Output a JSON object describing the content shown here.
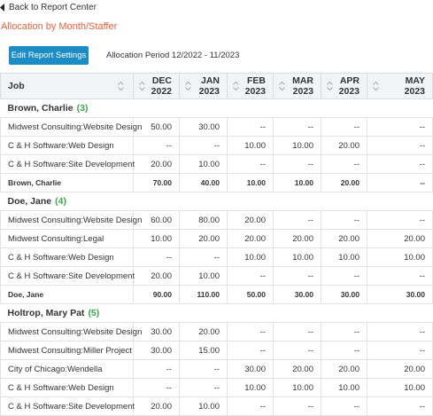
{
  "header": {
    "back_link": "Back to Report Center",
    "title": "Allocation by Month/Staffer"
  },
  "toolbar": {
    "button": "Edit Report Settings",
    "period": "Allocation Period 12/2022 - 11/2023"
  },
  "table": {
    "job_header": "Job",
    "columns": [
      {
        "month": "DEC",
        "year": "2022"
      },
      {
        "month": "JAN",
        "year": "2023"
      },
      {
        "month": "FEB",
        "year": "2023"
      },
      {
        "month": "MAR",
        "year": "2023"
      },
      {
        "month": "APR",
        "year": "2023"
      },
      {
        "month": "MAY",
        "year": "2023"
      }
    ],
    "groups": [
      {
        "name": "Brown, Charlie",
        "count": "(3)",
        "rows": [
          {
            "job": "Midwest Consulting:Website Design",
            "values": [
              "50.00",
              "30.00",
              "--",
              "--",
              "--",
              "--"
            ]
          },
          {
            "job": "C & H Software:Web Design",
            "values": [
              "--",
              "--",
              "10.00",
              "10.00",
              "20.00",
              "--"
            ]
          },
          {
            "job": "C & H Software:Site Development",
            "values": [
              "20.00",
              "10.00",
              "--",
              "--",
              "--",
              "--"
            ]
          }
        ],
        "total": {
          "label": "Brown, Charlie",
          "values": [
            "70.00",
            "40.00",
            "10.00",
            "10.00",
            "20.00",
            "--"
          ]
        }
      },
      {
        "name": "Doe, Jane",
        "count": "(4)",
        "rows": [
          {
            "job": "Midwest Consulting:Website Design",
            "values": [
              "60.00",
              "80.00",
              "20.00",
              "--",
              "--",
              "--"
            ]
          },
          {
            "job": "Midwest Consulting:Legal",
            "values": [
              "10.00",
              "20.00",
              "20.00",
              "20.00",
              "20.00",
              "20.00"
            ]
          },
          {
            "job": "C & H Software:Web Design",
            "values": [
              "--",
              "--",
              "10.00",
              "10.00",
              "10.00",
              "10.00"
            ]
          },
          {
            "job": "C & H Software:Site Development",
            "values": [
              "20.00",
              "10.00",
              "--",
              "--",
              "--",
              "--"
            ]
          }
        ],
        "total": {
          "label": "Doe, Jane",
          "values": [
            "90.00",
            "110.00",
            "50.00",
            "30.00",
            "30.00",
            "30.00"
          ]
        }
      },
      {
        "name": "Holtrop, Mary Pat",
        "count": "(5)",
        "rows": [
          {
            "job": "Midwest Consulting:Website Design",
            "values": [
              "30.00",
              "20.00",
              "--",
              "--",
              "--",
              "--"
            ]
          },
          {
            "job": "Midwest Consulting:Miller Project",
            "values": [
              "30.00",
              "15.00",
              "--",
              "--",
              "--",
              "--"
            ]
          },
          {
            "job": "City of Chicago:Wendella",
            "values": [
              "--",
              "--",
              "30.00",
              "20.00",
              "20.00",
              "20.00"
            ]
          },
          {
            "job": "C & H Software:Web Design",
            "values": [
              "--",
              "--",
              "10.00",
              "10.00",
              "10.00",
              "10.00"
            ]
          },
          {
            "job": "C & H Software:Site Development",
            "values": [
              "20.00",
              "10.00",
              "--",
              "--",
              "--",
              "--"
            ]
          }
        ]
      }
    ]
  }
}
